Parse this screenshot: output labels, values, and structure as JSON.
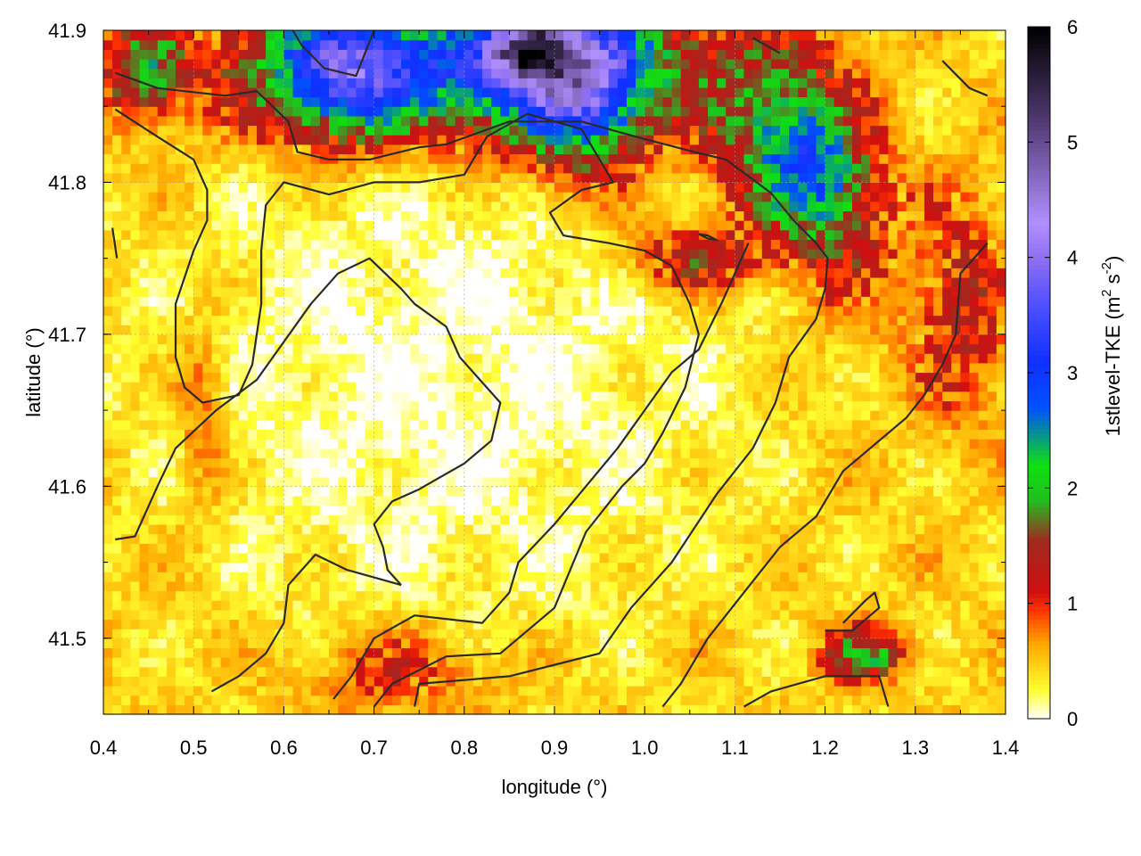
{
  "chart_data": {
    "type": "heatmap",
    "xlabel": "longitude (°)",
    "ylabel": "latitude (°)",
    "colorbar_label_main": "1stlevel-TKE (m",
    "colorbar_label_sup1": "2",
    "colorbar_label_mid": " s",
    "colorbar_label_sup2": "-2",
    "colorbar_label_end": ")",
    "xlim": [
      0.4,
      1.4
    ],
    "ylim": [
      41.45,
      41.9
    ],
    "zlim": [
      0,
      6
    ],
    "x_ticks": [
      0.4,
      0.5,
      0.6,
      0.7,
      0.8,
      0.9,
      1.0,
      1.1,
      1.2,
      1.3,
      1.4
    ],
    "x_tick_labels": [
      "0.4",
      "0.5",
      "0.6",
      "0.7",
      "0.8",
      "0.9",
      "1.0",
      "1.1",
      "1.2",
      "1.3",
      "1.4"
    ],
    "y_ticks": [
      41.5,
      41.6,
      41.7,
      41.8,
      41.9
    ],
    "y_tick_labels": [
      "41.5",
      "41.6",
      "41.7",
      "41.8",
      "41.9"
    ],
    "z_ticks": [
      0,
      1,
      2,
      3,
      4,
      5,
      6
    ],
    "z_tick_labels": [
      "0",
      "1",
      "2",
      "3",
      "4",
      "5",
      "6"
    ],
    "grid": true,
    "colormap": [
      "#ffffff",
      "#ffff30",
      "#ffa800",
      "#ff3000",
      "#d01010",
      "#a02a20",
      "#20c020",
      "#10e010",
      "#0050ff",
      "#1030ff",
      "#5050ff",
      "#9070f0",
      "#b090ff",
      "#503870",
      "#000000"
    ],
    "colormap_stops": [
      0,
      0.25,
      0.65,
      0.95,
      1.1,
      1.55,
      1.9,
      2.2,
      2.7,
      3.1,
      3.6,
      4.0,
      4.3,
      5.2,
      6.0
    ],
    "hotspots": [
      {
        "x": 0.81,
        "y": 41.875,
        "sx": 0.17,
        "sy": 0.03,
        "amp": 2.6
      },
      {
        "x": 0.66,
        "y": 41.875,
        "sx": 0.05,
        "sy": 0.03,
        "amp": 1.8
      },
      {
        "x": 0.93,
        "y": 41.865,
        "sx": 0.05,
        "sy": 0.04,
        "amp": 2.3
      },
      {
        "x": 0.87,
        "y": 41.89,
        "sx": 0.03,
        "sy": 0.015,
        "amp": 2.5
      },
      {
        "x": 0.445,
        "y": 41.875,
        "sx": 0.03,
        "sy": 0.02,
        "amp": 1.4
      },
      {
        "x": 1.15,
        "y": 41.83,
        "sx": 0.05,
        "sy": 0.04,
        "amp": 1.5
      },
      {
        "x": 1.19,
        "y": 41.805,
        "sx": 0.04,
        "sy": 0.03,
        "amp": 1.2
      },
      {
        "x": 1.05,
        "y": 41.75,
        "sx": 0.05,
        "sy": 0.015,
        "amp": 1.0
      },
      {
        "x": 1.35,
        "y": 41.72,
        "sx": 0.04,
        "sy": 0.05,
        "amp": 0.8
      },
      {
        "x": 1.245,
        "y": 41.49,
        "sx": 0.03,
        "sy": 0.012,
        "amp": 1.6
      },
      {
        "x": 0.73,
        "y": 41.48,
        "sx": 0.07,
        "sy": 0.02,
        "amp": 0.6
      },
      {
        "x": 0.51,
        "y": 41.65,
        "sx": 0.02,
        "sy": 0.05,
        "amp": 0.5
      },
      {
        "x": 1.22,
        "y": 41.77,
        "sx": 0.04,
        "sy": 0.04,
        "amp": 0.7
      }
    ],
    "contours": [
      [
        [
          0.413,
          41.872
        ],
        [
          0.46,
          41.862
        ],
        [
          0.535,
          41.857
        ],
        [
          0.57,
          41.86
        ],
        [
          0.605,
          41.84
        ],
        [
          0.615,
          41.82
        ],
        [
          0.65,
          41.815
        ],
        [
          0.695,
          41.815
        ],
        [
          0.75,
          41.823
        ],
        [
          0.78,
          41.825
        ],
        [
          0.85,
          41.84
        ],
        [
          0.93,
          41.84
        ],
        [
          0.99,
          41.83
        ],
        [
          1.055,
          41.82
        ],
        [
          1.09,
          41.815
        ],
        [
          1.14,
          41.793
        ],
        [
          1.165,
          41.775
        ],
        [
          1.19,
          41.76
        ],
        [
          1.203,
          41.75
        ],
        [
          1.2,
          41.73
        ],
        [
          1.19,
          41.71
        ],
        [
          1.16,
          41.685
        ],
        [
          1.145,
          41.655
        ],
        [
          1.12,
          41.625
        ],
        [
          1.08,
          41.595
        ],
        [
          1.03,
          41.55
        ],
        [
          0.985,
          41.52
        ],
        [
          0.95,
          41.49
        ],
        [
          0.85,
          41.475
        ],
        [
          0.75,
          41.47
        ],
        [
          0.745,
          41.455
        ]
      ],
      [
        [
          0.413,
          41.848
        ],
        [
          0.46,
          41.83
        ],
        [
          0.5,
          41.815
        ],
        [
          0.515,
          41.795
        ],
        [
          0.515,
          41.775
        ],
        [
          0.5,
          41.755
        ],
        [
          0.48,
          41.72
        ],
        [
          0.48,
          41.685
        ],
        [
          0.49,
          41.665
        ],
        [
          0.51,
          41.655
        ],
        [
          0.55,
          41.66
        ],
        [
          0.565,
          41.68
        ],
        [
          0.575,
          41.72
        ],
        [
          0.575,
          41.755
        ],
        [
          0.58,
          41.785
        ],
        [
          0.6,
          41.8
        ],
        [
          0.65,
          41.792
        ],
        [
          0.7,
          41.8
        ],
        [
          0.75,
          41.8
        ],
        [
          0.8,
          41.805
        ],
        [
          0.825,
          41.83
        ],
        [
          0.87,
          41.845
        ],
        [
          0.93,
          41.835
        ],
        [
          0.965,
          41.8
        ],
        [
          0.93,
          41.795
        ],
        [
          0.895,
          41.78
        ],
        [
          0.91,
          41.765
        ],
        [
          0.96,
          41.76
        ],
        [
          1.0,
          41.755
        ],
        [
          1.03,
          41.745
        ],
        [
          1.05,
          41.72
        ],
        [
          1.06,
          41.7
        ],
        [
          1.045,
          41.665
        ],
        [
          1.02,
          41.635
        ],
        [
          1.0,
          41.615
        ],
        [
          0.975,
          41.6
        ],
        [
          0.935,
          41.57
        ],
        [
          0.9,
          41.52
        ],
        [
          0.84,
          41.49
        ],
        [
          0.78,
          41.488
        ],
        [
          0.72,
          41.47
        ],
        [
          0.7,
          41.455
        ]
      ],
      [
        [
          0.413,
          41.565
        ],
        [
          0.435,
          41.567
        ],
        [
          0.46,
          41.6
        ],
        [
          0.48,
          41.625
        ],
        [
          0.525,
          41.65
        ],
        [
          0.57,
          41.67
        ],
        [
          0.6,
          41.695
        ],
        [
          0.63,
          41.72
        ],
        [
          0.66,
          41.74
        ],
        [
          0.695,
          41.75
        ],
        [
          0.73,
          41.73
        ],
        [
          0.745,
          41.72
        ],
        [
          0.78,
          41.705
        ],
        [
          0.795,
          41.685
        ],
        [
          0.84,
          41.655
        ],
        [
          0.83,
          41.63
        ],
        [
          0.8,
          41.615
        ],
        [
          0.75,
          41.598
        ],
        [
          0.72,
          41.59
        ],
        [
          0.7,
          41.575
        ],
        [
          0.71,
          41.56
        ],
        [
          0.715,
          41.545
        ],
        [
          0.73,
          41.535
        ]
      ],
      [
        [
          0.73,
          41.535
        ],
        [
          0.67,
          41.545
        ],
        [
          0.635,
          41.555
        ],
        [
          0.605,
          41.535
        ],
        [
          0.6,
          41.51
        ],
        [
          0.58,
          41.49
        ],
        [
          0.55,
          41.475
        ],
        [
          0.52,
          41.465
        ]
      ],
      [
        [
          0.655,
          41.46
        ],
        [
          0.675,
          41.475
        ],
        [
          0.7,
          41.5
        ],
        [
          0.745,
          41.515
        ],
        [
          0.82,
          41.51
        ],
        [
          0.85,
          41.53
        ],
        [
          0.86,
          41.55
        ],
        [
          0.9,
          41.575
        ],
        [
          0.935,
          41.6
        ],
        [
          0.97,
          41.625
        ],
        [
          1.0,
          41.65
        ],
        [
          1.03,
          41.675
        ],
        [
          1.06,
          41.69
        ],
        [
          1.085,
          41.72
        ],
        [
          1.1,
          41.74
        ],
        [
          1.115,
          41.76
        ]
      ],
      [
        [
          1.02,
          41.455
        ],
        [
          1.04,
          41.47
        ],
        [
          1.07,
          41.5
        ],
        [
          1.11,
          41.53
        ],
        [
          1.15,
          41.56
        ],
        [
          1.19,
          41.58
        ],
        [
          1.22,
          41.61
        ],
        [
          1.25,
          41.625
        ],
        [
          1.29,
          41.645
        ],
        [
          1.31,
          41.66
        ],
        [
          1.33,
          41.68
        ],
        [
          1.345,
          41.7
        ],
        [
          1.35,
          41.74
        ],
        [
          1.38,
          41.76
        ]
      ],
      [
        [
          1.11,
          41.455
        ],
        [
          1.14,
          41.465
        ],
        [
          1.2,
          41.475
        ],
        [
          1.26,
          41.475
        ],
        [
          1.27,
          41.455
        ]
      ],
      [
        [
          1.2,
          41.505
        ],
        [
          1.23,
          41.505
        ],
        [
          1.26,
          41.52
        ],
        [
          1.255,
          41.53
        ],
        [
          1.245,
          41.525
        ],
        [
          1.22,
          41.51
        ]
      ],
      [
        [
          1.06,
          41.766
        ],
        [
          1.07,
          41.763
        ],
        [
          1.08,
          41.762
        ],
        [
          1.07,
          41.765
        ],
        [
          1.06,
          41.766
        ]
      ],
      [
        [
          0.61,
          41.9
        ],
        [
          0.62,
          41.89
        ],
        [
          0.645,
          41.875
        ],
        [
          0.68,
          41.87
        ],
        [
          0.7,
          41.9
        ]
      ],
      [
        [
          1.33,
          41.88
        ],
        [
          1.36,
          41.862
        ],
        [
          1.38,
          41.857
        ]
      ],
      [
        [
          0.41,
          41.77
        ],
        [
          0.415,
          41.75
        ]
      ],
      [
        [
          1.12,
          41.895
        ],
        [
          1.15,
          41.885
        ]
      ]
    ]
  }
}
